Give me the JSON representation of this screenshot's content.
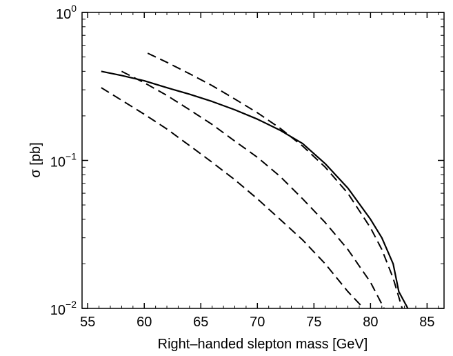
{
  "chart_data": {
    "type": "line",
    "title": "",
    "xlabel": "Right–handed slepton mass  [GeV]",
    "ylabel": "σ  [pb]",
    "xlim": [
      54.5,
      86.5
    ],
    "ylim": [
      0.01,
      1
    ],
    "yscale": "log",
    "grid": false,
    "x_ticks": [
      55,
      60,
      65,
      70,
      75,
      80,
      85
    ],
    "x_tick_labels": [
      "55",
      "60",
      "65",
      "70",
      "75",
      "80",
      "85"
    ],
    "y_ticks": [
      {
        "value": 1,
        "base": "10",
        "exp": "0"
      },
      {
        "value": 0.1,
        "base": "10",
        "exp": "−1"
      },
      {
        "value": 0.01,
        "base": "10",
        "exp": "−2"
      }
    ],
    "series": [
      {
        "style": "solid",
        "points": [
          [
            56.2,
            0.4
          ],
          [
            58,
            0.375
          ],
          [
            60,
            0.345
          ],
          [
            62,
            0.31
          ],
          [
            64,
            0.28
          ],
          [
            66,
            0.25
          ],
          [
            68,
            0.22
          ],
          [
            70,
            0.19
          ],
          [
            72,
            0.16
          ],
          [
            74,
            0.13
          ],
          [
            76,
            0.095
          ],
          [
            78,
            0.065
          ],
          [
            80,
            0.04
          ],
          [
            81,
            0.03
          ],
          [
            82,
            0.02
          ],
          [
            82.5,
            0.013
          ],
          [
            83.3,
            0.01
          ]
        ]
      },
      {
        "style": "dashed",
        "points": [
          [
            60.3,
            0.53
          ],
          [
            62,
            0.46
          ],
          [
            64,
            0.385
          ],
          [
            66,
            0.32
          ],
          [
            68,
            0.26
          ],
          [
            70,
            0.21
          ],
          [
            72,
            0.165
          ],
          [
            74,
            0.125
          ],
          [
            76,
            0.09
          ],
          [
            78,
            0.06
          ],
          [
            80,
            0.035
          ],
          [
            81,
            0.025
          ],
          [
            82,
            0.016
          ],
          [
            82.8,
            0.01
          ]
        ]
      },
      {
        "style": "dashed",
        "points": [
          [
            58,
            0.4
          ],
          [
            60,
            0.335
          ],
          [
            62,
            0.275
          ],
          [
            64,
            0.22
          ],
          [
            66,
            0.175
          ],
          [
            68,
            0.135
          ],
          [
            70,
            0.105
          ],
          [
            72,
            0.078
          ],
          [
            74,
            0.055
          ],
          [
            76,
            0.038
          ],
          [
            78,
            0.025
          ],
          [
            80,
            0.015
          ],
          [
            81.2,
            0.01
          ]
        ]
      },
      {
        "style": "dashed",
        "points": [
          [
            56.2,
            0.31
          ],
          [
            58,
            0.255
          ],
          [
            60,
            0.205
          ],
          [
            62,
            0.163
          ],
          [
            64,
            0.126
          ],
          [
            66,
            0.097
          ],
          [
            68,
            0.074
          ],
          [
            70,
            0.055
          ],
          [
            72,
            0.04
          ],
          [
            74,
            0.029
          ],
          [
            76,
            0.02
          ],
          [
            78,
            0.013
          ],
          [
            79.4,
            0.01
          ]
        ]
      }
    ]
  }
}
